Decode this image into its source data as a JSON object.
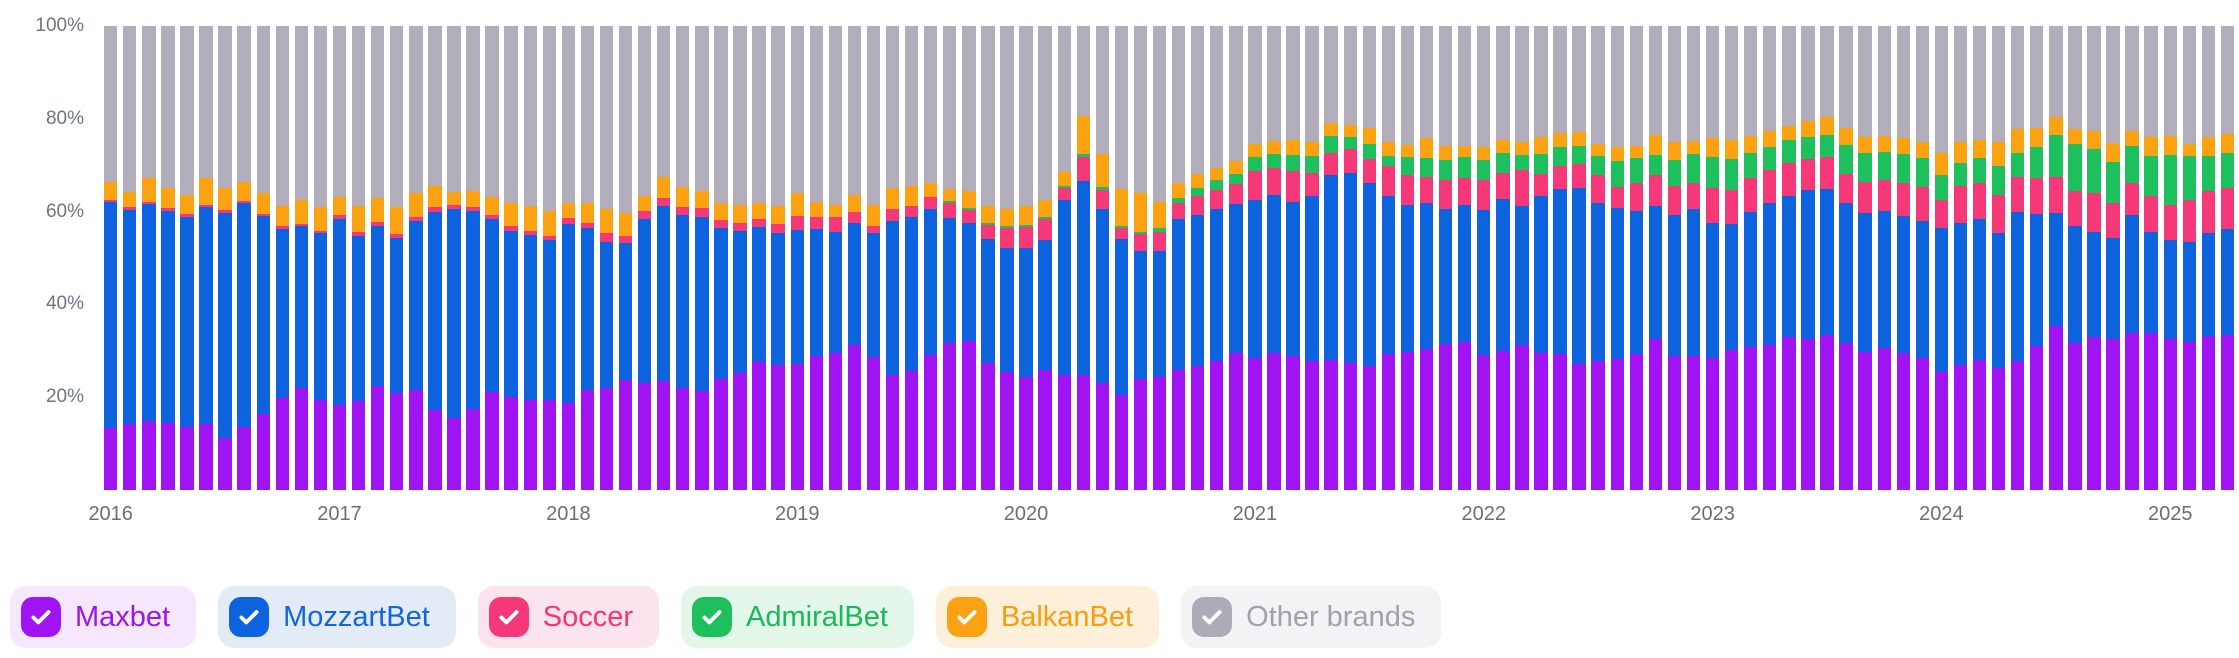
{
  "chart_data": {
    "type": "bar",
    "stacked": true,
    "percent": true,
    "title": "",
    "xlabel": "",
    "ylabel": "",
    "ylim": [
      0,
      100
    ],
    "grid": false,
    "legend_position": "bottom-left",
    "y_ticks": [
      {
        "value": 100,
        "label": "100%"
      },
      {
        "value": 80,
        "label": "80%"
      },
      {
        "value": 60,
        "label": "60%"
      },
      {
        "value": 40,
        "label": "40%"
      },
      {
        "value": 20,
        "label": "20%"
      }
    ],
    "x_unit": "month",
    "x_start": "2016-01",
    "x_end": "2025-04",
    "x_tick_labels": [
      "2016",
      "2017",
      "2018",
      "2019",
      "2020",
      "2021",
      "2022",
      "2023",
      "2024",
      "2025"
    ],
    "series": [
      {
        "name": "Maxbet",
        "color": "#A013F2",
        "values": [
          13.4,
          14.2,
          14.9,
          14.4,
          13.5,
          14.2,
          11.3,
          13.6,
          16.3,
          19.9,
          22.0,
          19.4,
          18.3,
          19.2,
          22.4,
          21.0,
          21.6,
          17.2,
          15.5,
          17.4,
          21.2,
          20.1,
          19.4,
          19.4,
          18.8,
          21.6,
          22.0,
          23.7,
          23.0,
          23.5,
          22.0,
          21.3,
          23.9,
          25.2,
          27.6,
          26.9,
          27.1,
          28.9,
          29.5,
          31.3,
          28.7,
          24.8,
          25.7,
          29.1,
          31.6,
          32.1,
          27.4,
          25.5,
          24.4,
          25.9,
          24.8,
          24.8,
          23.1,
          20.5,
          23.9,
          24.3,
          25.9,
          26.7,
          27.7,
          29.5,
          28.5,
          29.6,
          28.9,
          27.7,
          28.0,
          27.4,
          26.7,
          29.3,
          29.8,
          30.3,
          31.4,
          31.8,
          29.1,
          30.0,
          31.3,
          29.6,
          29.3,
          27.2,
          27.7,
          28.2,
          29.3,
          32.5,
          28.9,
          28.9,
          28.4,
          30.2,
          30.8,
          31.3,
          32.9,
          32.5,
          33.4,
          31.6,
          29.8,
          30.5,
          29.5,
          28.4,
          25.5,
          26.9,
          28.0,
          26.2,
          27.7,
          31.0,
          35.3,
          31.6,
          33.0,
          32.5,
          33.9,
          33.8,
          32.5,
          31.8,
          33.2,
          33.4
        ]
      },
      {
        "name": "MozzartBet",
        "color": "#0D63DD",
        "values": [
          48.7,
          46.1,
          46.7,
          45.8,
          45.4,
          46.7,
          48.5,
          48.2,
          42.7,
          36.3,
          34.8,
          35.9,
          40.1,
          35.5,
          34.5,
          33.3,
          36.4,
          42.8,
          45.0,
          42.7,
          37.2,
          35.8,
          35.6,
          34.5,
          38.5,
          34.8,
          31.5,
          29.5,
          35.4,
          37.7,
          37.3,
          37.5,
          32.5,
          30.7,
          29.1,
          28.5,
          28.9,
          27.3,
          26.2,
          26.2,
          26.6,
          33.2,
          33.1,
          31.4,
          27.0,
          25.4,
          26.7,
          26.6,
          27.7,
          28.0,
          37.7,
          41.9,
          37.4,
          33.6,
          27.7,
          27.3,
          32.5,
          32.6,
          32.8,
          32.1,
          34.0,
          34.0,
          33.2,
          35.7,
          39.9,
          40.9,
          39.5,
          34.1,
          31.6,
          31.5,
          29.1,
          29.6,
          31.2,
          32.7,
          29.9,
          33.8,
          35.5,
          37.8,
          34.2,
          32.6,
          30.9,
          28.7,
          30.4,
          31.6,
          29.1,
          27.1,
          29.2,
          30.6,
          30.5,
          32.2,
          31.4,
          30.2,
          29.8,
          29.7,
          29.5,
          29.6,
          30.9,
          30.6,
          30.4,
          29.1,
          32.3,
          28.5,
          24.5,
          25.3,
          22.5,
          21.7,
          25.4,
          21.7,
          21.4,
          21.7,
          22.2,
          22.8
        ]
      },
      {
        "name": "Soccer",
        "color": "#F53877",
        "values": [
          0.4,
          0.6,
          0.5,
          0.5,
          0.5,
          0.5,
          0.5,
          0.5,
          0.5,
          0.6,
          0.6,
          0.6,
          0.9,
          0.9,
          0.9,
          0.9,
          0.9,
          0.9,
          0.9,
          0.9,
          0.9,
          0.9,
          0.9,
          0.9,
          1.3,
          1.2,
          1.8,
          1.6,
          1.8,
          1.7,
          1.7,
          2.0,
          1.8,
          1.7,
          1.7,
          1.9,
          3.1,
          2.7,
          3.1,
          2.5,
          1.6,
          2.5,
          2.3,
          2.6,
          3.2,
          2.8,
          3.0,
          4.3,
          4.5,
          4.4,
          2.5,
          5.1,
          4.2,
          2.3,
          3.6,
          4.1,
          3.4,
          4.1,
          4.2,
          4.3,
          6.3,
          5.8,
          6.7,
          4.9,
          4.8,
          5.1,
          5.1,
          6.4,
          6.5,
          5.6,
          6.2,
          5.8,
          6.4,
          5.7,
          7.8,
          4.8,
          5.0,
          5.2,
          6.0,
          4.6,
          6.0,
          6.7,
          6.2,
          5.7,
          7.6,
          7.4,
          7.2,
          7.1,
          7.0,
          6.6,
          7.0,
          6.4,
          6.8,
          6.6,
          7.2,
          7.4,
          6.1,
          8.0,
          7.8,
          8.3,
          7.5,
          7.7,
          7.6,
          7.6,
          8.6,
          7.7,
          6.9,
          7.9,
          7.5,
          9.1,
          9.1,
          8.8
        ]
      },
      {
        "name": "AdmiralBet",
        "color": "#1EBF5D",
        "values": [
          0,
          0,
          0,
          0,
          0,
          0,
          0,
          0,
          0,
          0,
          0,
          0,
          0,
          0,
          0,
          0,
          0,
          0,
          0,
          0,
          0,
          0,
          0,
          0,
          0,
          0,
          0,
          0,
          0,
          0,
          0,
          0,
          0,
          0,
          0,
          0,
          0,
          0,
          0,
          0,
          0,
          0,
          0,
          0,
          0.5,
          0.5,
          0.5,
          0.5,
          0.6,
          0.6,
          0.5,
          0.6,
          0.5,
          0.5,
          0.5,
          0.7,
          1.2,
          1.6,
          2.2,
          2.3,
          3.0,
          3.0,
          3.4,
          3.7,
          3.6,
          2.6,
          3.3,
          2.2,
          3.8,
          4.1,
          4.5,
          4.5,
          4.4,
          4.3,
          3.2,
          4.2,
          4.1,
          3.9,
          4.1,
          5.6,
          5.3,
          4.3,
          5.7,
          6.2,
          6.7,
          6.6,
          5.5,
          4.9,
          5.0,
          4.7,
          4.7,
          6.2,
          6.2,
          6.1,
          6.2,
          6.1,
          5.4,
          4.9,
          5.3,
          6.2,
          5.2,
          6.7,
          9.1,
          10.1,
          9.3,
          8.7,
          8.0,
          8.6,
          10.8,
          9.3,
          7.5,
          7.6
        ]
      },
      {
        "name": "BalkanBet",
        "color": "#FAA211",
        "values": [
          3.9,
          3.4,
          5.2,
          4.3,
          4.2,
          5.9,
          4.7,
          4.1,
          4.5,
          4.4,
          5.1,
          5.0,
          3.8,
          5.6,
          5.1,
          5.8,
          5.1,
          4.6,
          2.8,
          3.4,
          3.8,
          5.0,
          5.3,
          5.3,
          3.3,
          4.3,
          5.2,
          4.8,
          3.2,
          4.6,
          4.3,
          3.6,
          3.6,
          3.8,
          3.5,
          3.9,
          4.9,
          3.2,
          2.6,
          3.6,
          4.5,
          4.5,
          4.4,
          3.1,
          2.5,
          3.7,
          3.6,
          3.6,
          3.9,
          3.7,
          3.1,
          8.2,
          7.2,
          7.9,
          8.4,
          5.6,
          3.2,
          3.2,
          2.6,
          2.8,
          2.8,
          2.9,
          3.2,
          3.1,
          2.8,
          2.7,
          3.4,
          2.9,
          2.7,
          4.3,
          3.0,
          2.5,
          2.8,
          2.7,
          2.7,
          3.6,
          3.1,
          3.1,
          2.6,
          2.9,
          2.7,
          4.3,
          3.7,
          2.9,
          4.1,
          4.1,
          3.6,
          3.5,
          3.0,
          3.6,
          3.8,
          3.6,
          3.4,
          3.4,
          3.4,
          3.4,
          4.7,
          4.5,
          3.9,
          5.3,
          5.0,
          4.2,
          3.8,
          3.3,
          4.0,
          4.1,
          3.2,
          4.1,
          4.0,
          2.7,
          4.0,
          4.1
        ]
      },
      {
        "name": "Other brands",
        "color": "#B2ADBB",
        "values": [
          33.6,
          35.7,
          32.7,
          35.0,
          36.4,
          32.7,
          35.0,
          33.6,
          36.0,
          38.8,
          37.5,
          39.1,
          36.9,
          38.8,
          37.1,
          39.0,
          36.0,
          34.5,
          35.8,
          35.6,
          36.9,
          38.2,
          38.8,
          39.9,
          38.1,
          38.1,
          39.5,
          40.4,
          36.6,
          32.5,
          34.7,
          35.6,
          38.2,
          38.6,
          38.1,
          38.8,
          36.0,
          37.9,
          38.6,
          36.4,
          38.6,
          35.0,
          34.5,
          33.8,
          35.2,
          35.5,
          38.8,
          39.5,
          38.9,
          37.4,
          31.4,
          19.4,
          27.6,
          35.2,
          35.9,
          38.0,
          33.8,
          31.8,
          30.5,
          29.0,
          25.4,
          24.7,
          24.6,
          24.9,
          20.9,
          21.3,
          22.0,
          25.1,
          25.6,
          24.2,
          25.8,
          25.8,
          26.1,
          24.6,
          25.1,
          24.0,
          23.0,
          22.8,
          25.4,
          26.1,
          25.8,
          23.5,
          25.1,
          24.7,
          24.1,
          24.6,
          23.7,
          22.6,
          21.6,
          20.4,
          19.7,
          22.0,
          24.0,
          23.7,
          24.2,
          25.1,
          27.4,
          25.1,
          24.6,
          24.9,
          22.3,
          21.9,
          19.7,
          22.1,
          22.6,
          25.3,
          22.6,
          23.9,
          23.8,
          25.4,
          24.0,
          23.3
        ]
      }
    ]
  },
  "legend": {
    "items": [
      {
        "label": "Maxbet",
        "checked": true,
        "chip_color": "#A013F2",
        "text_color": "#9B16E8",
        "bg_color": "#F5E8FC"
      },
      {
        "label": "MozzartBet",
        "checked": true,
        "chip_color": "#0D63DD",
        "text_color": "#1266DB",
        "bg_color": "#E3EBF7"
      },
      {
        "label": "Soccer",
        "checked": true,
        "chip_color": "#F53877",
        "text_color": "#F43672",
        "bg_color": "#FCE4EE"
      },
      {
        "label": "AdmiralBet",
        "checked": true,
        "chip_color": "#1EBF5D",
        "text_color": "#1CB75A",
        "bg_color": "#E2F6EA"
      },
      {
        "label": "BalkanBet",
        "checked": true,
        "chip_color": "#FAA211",
        "text_color": "#F89E0C",
        "bg_color": "#FDF0DB"
      },
      {
        "label": "Other brands",
        "checked": true,
        "chip_color": "#AFAAB8",
        "text_color": "#A2A0A8",
        "bg_color": "#F3F2F5"
      }
    ],
    "check_icon": "check-icon"
  },
  "layout_colors": {
    "background": "#FFFFFF",
    "axis_text": "#6E7480"
  }
}
